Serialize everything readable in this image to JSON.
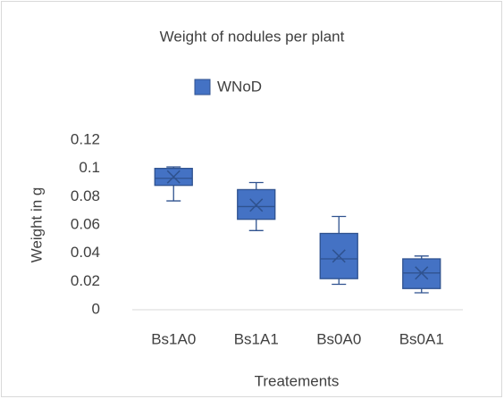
{
  "chart_data": {
    "type": "box",
    "title": "Weight of nodules per plant",
    "x_label": "Treatements",
    "y_label": "Weight in g",
    "categories": [
      "Bs1A0",
      "Bs1A1",
      "Bs0A0",
      "Bs0A1"
    ],
    "series": [
      {
        "name": "WNoD",
        "color": "#4472c4",
        "min": [
          0.077,
          0.056,
          0.018,
          0.012
        ],
        "q1": [
          0.088,
          0.064,
          0.022,
          0.015
        ],
        "median": [
          0.093,
          0.073,
          0.036,
          0.026
        ],
        "q3": [
          0.1,
          0.085,
          0.054,
          0.036
        ],
        "max": [
          0.101,
          0.09,
          0.066,
          0.038
        ],
        "mean": [
          0.094,
          0.074,
          0.038,
          0.026
        ]
      }
    ],
    "ylim": [
      0,
      0.12
    ],
    "yticks": [
      0,
      0.02,
      0.04,
      0.06,
      0.08,
      0.1,
      0.12
    ],
    "legend": "top",
    "grid": false
  }
}
